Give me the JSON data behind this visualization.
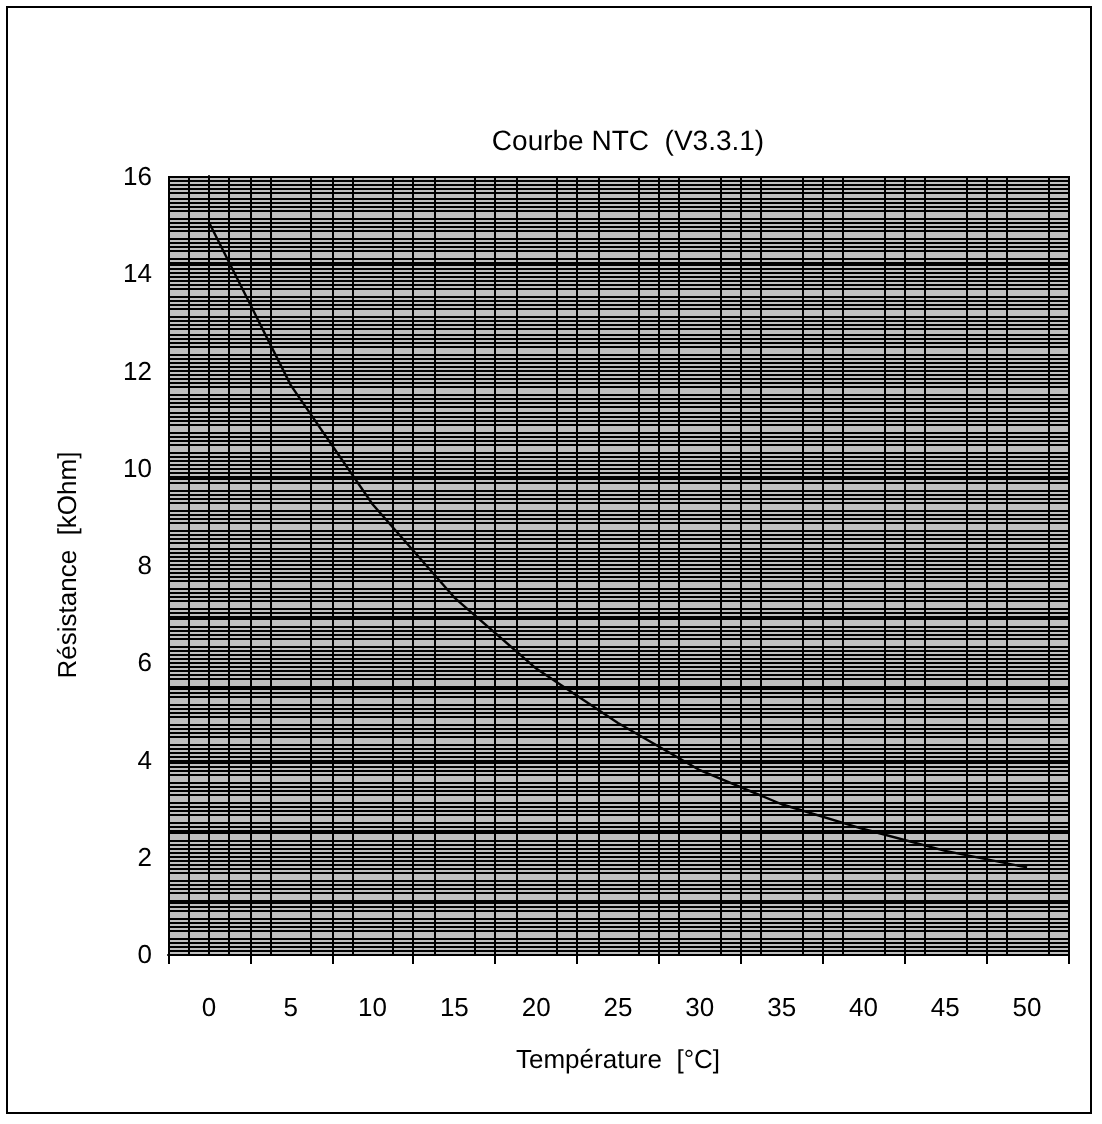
{
  "chart_data": {
    "type": "line",
    "title": "Courbe NTC  (V3.3.1)",
    "xlabel": "Température  [°C]",
    "ylabel": "Résistance  [kOhm]",
    "x": [
      0,
      5,
      10,
      15,
      20,
      25,
      30,
      35,
      40,
      45,
      50
    ],
    "series": [
      {
        "color": "#000000",
        "values": [
          15.05,
          11.7,
          9.25,
          7.33,
          5.87,
          4.75,
          3.78,
          3.08,
          2.57,
          2.12,
          1.78
        ]
      }
    ],
    "xlim": [
      -2.5,
      52.5
    ],
    "xticks": [
      0,
      5,
      10,
      15,
      20,
      25,
      30,
      35,
      40,
      45,
      50
    ],
    "ylim": [
      0,
      16
    ],
    "yticks": [
      0,
      2,
      4,
      6,
      8,
      10,
      12,
      14,
      16
    ],
    "grid": true,
    "marker": "none",
    "line_style": "solid"
  }
}
